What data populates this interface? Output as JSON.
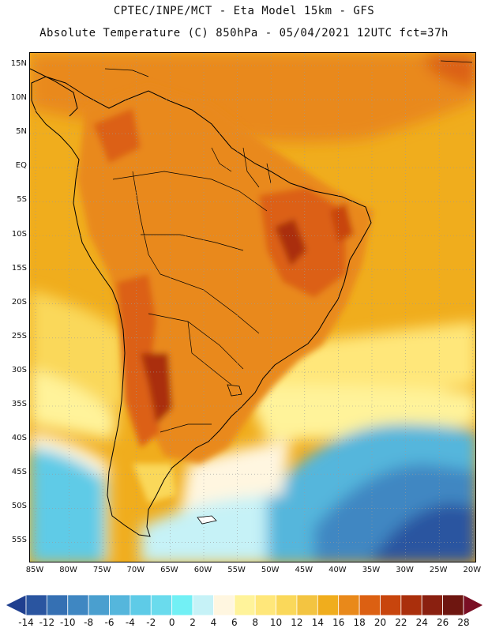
{
  "header": {
    "line1": "CPTEC/INPE/MCT -  Eta Model 15km - GFS",
    "line2": "Absolute Temperature (C) 850hPa - 05/04/2021 12UTC fct=37h"
  },
  "map": {
    "lat_labels": [
      "15N",
      "10N",
      "5N",
      "EQ",
      "5S",
      "10S",
      "15S",
      "20S",
      "25S",
      "30S",
      "35S",
      "40S",
      "45S",
      "50S",
      "55S"
    ],
    "lon_labels": [
      "85W",
      "80W",
      "75W",
      "70W",
      "65W",
      "60W",
      "55W",
      "50W",
      "45W",
      "40W",
      "35W",
      "30W",
      "25W",
      "20W"
    ],
    "coastline_color": "#000000",
    "grid_color": "#9a9a9a"
  },
  "colorbar": {
    "labels": [
      "-14",
      "-12",
      "-10",
      "-8",
      "-6",
      "-4",
      "-2",
      "0",
      "2",
      "4",
      "6",
      "8",
      "10",
      "12",
      "14",
      "16",
      "18",
      "20",
      "22",
      "24",
      "26",
      "28"
    ],
    "colors": [
      "#1f3f8f",
      "#2a55a0",
      "#3570b3",
      "#3f87c2",
      "#4a9fcf",
      "#55b6dc",
      "#5ecbe7",
      "#6adbed",
      "#72f0f5",
      "#c6f2f7",
      "#fff6e0",
      "#fff39a",
      "#ffe77a",
      "#fad85a",
      "#f3c441",
      "#f0ad1d",
      "#e9891a",
      "#dc6012",
      "#c8450d",
      "#aa2f0c",
      "#8a2010",
      "#6e1610",
      "#7a0f24"
    ]
  }
}
